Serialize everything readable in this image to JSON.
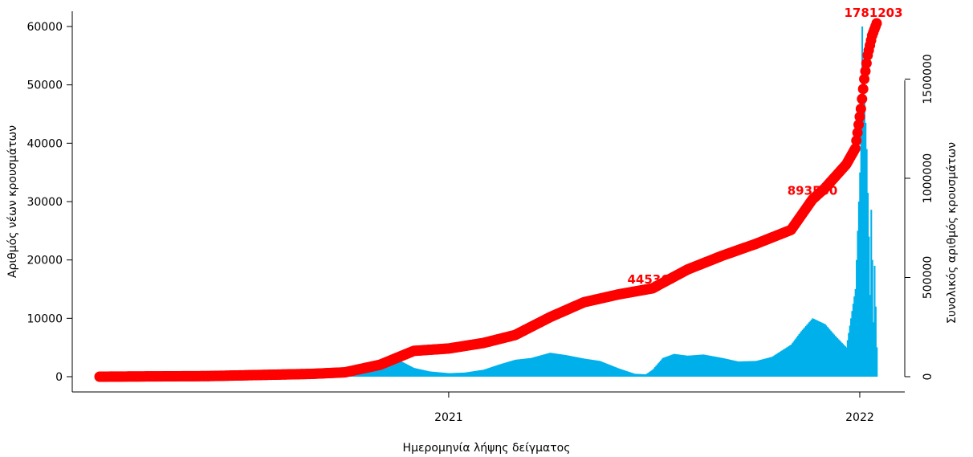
{
  "chart_data": {
    "type": "bar",
    "xlabel": "Ημερομηνία λήψης δείγματος",
    "ylabel_left": "Αριθμός νέων κρουσμάτων",
    "ylabel_right": "Συνολικός αριθμός κρουσμάτων",
    "x_range": [
      "2020-02-26",
      "2022-01-16"
    ],
    "x_ticks": [
      {
        "date": "2021-01-01",
        "label": "2021"
      },
      {
        "date": "2022-01-01",
        "label": "2022"
      }
    ],
    "y_left_range": [
      0,
      60000
    ],
    "y_left_ticks": [
      0,
      10000,
      20000,
      30000,
      40000,
      50000,
      60000
    ],
    "y_right_range": [
      0,
      1781203
    ],
    "y_right_ticks": [
      0,
      500000,
      1000000,
      1500000
    ],
    "colors": {
      "bars": "#00B0EB",
      "cumulative": "#ff0000",
      "annotations": "#ff0000"
    },
    "series": [
      {
        "name": "Αριθμός νέων κρουσμάτων",
        "kind": "bar",
        "axis": "left",
        "points": [
          [
            "2020-02-26",
            0
          ],
          [
            "2020-04-01",
            60
          ],
          [
            "2020-05-01",
            20
          ],
          [
            "2020-06-01",
            15
          ],
          [
            "2020-07-01",
            40
          ],
          [
            "2020-08-01",
            180
          ],
          [
            "2020-09-01",
            250
          ],
          [
            "2020-10-01",
            700
          ],
          [
            "2020-10-15",
            1200
          ],
          [
            "2020-11-01",
            2500
          ],
          [
            "2020-11-10",
            3600
          ],
          [
            "2020-11-20",
            2600
          ],
          [
            "2020-12-01",
            1500
          ],
          [
            "2020-12-15",
            900
          ],
          [
            "2021-01-01",
            600
          ],
          [
            "2021-01-15",
            700
          ],
          [
            "2021-02-01",
            1200
          ],
          [
            "2021-02-15",
            2100
          ],
          [
            "2021-03-01",
            2900
          ],
          [
            "2021-03-15",
            3200
          ],
          [
            "2021-04-01",
            4100
          ],
          [
            "2021-04-15",
            3700
          ],
          [
            "2021-05-01",
            3100
          ],
          [
            "2021-05-15",
            2700
          ],
          [
            "2021-06-01",
            1400
          ],
          [
            "2021-06-15",
            500
          ],
          [
            "2021-06-25",
            400
          ],
          [
            "2021-07-01",
            1200
          ],
          [
            "2021-07-10",
            3200
          ],
          [
            "2021-07-20",
            3900
          ],
          [
            "2021-08-01",
            3600
          ],
          [
            "2021-08-15",
            3800
          ],
          [
            "2021-09-01",
            3200
          ],
          [
            "2021-09-15",
            2600
          ],
          [
            "2021-10-01",
            2700
          ],
          [
            "2021-10-15",
            3400
          ],
          [
            "2021-11-01",
            5500
          ],
          [
            "2021-11-10",
            7800
          ],
          [
            "2021-11-20",
            10000
          ],
          [
            "2021-12-01",
            9000
          ],
          [
            "2021-12-10",
            7000
          ],
          [
            "2021-12-20",
            5000
          ],
          [
            "2021-12-28",
            15000
          ],
          [
            "2022-01-01",
            35000
          ],
          [
            "2022-01-03",
            60000
          ],
          [
            "2022-01-05",
            48000
          ],
          [
            "2022-01-07",
            39000
          ],
          [
            "2022-01-09",
            24000
          ],
          [
            "2022-01-10",
            14000
          ],
          [
            "2022-01-11",
            28604
          ],
          [
            "2022-01-12",
            20000
          ],
          [
            "2022-01-13",
            9315
          ],
          [
            "2022-01-14",
            19000
          ],
          [
            "2022-01-16",
            5031
          ]
        ]
      },
      {
        "name": "Συνολικός αριθμός κρουσμάτων",
        "kind": "line",
        "axis": "right",
        "points": [
          [
            "2020-02-26",
            0
          ],
          [
            "2020-06-01",
            3000
          ],
          [
            "2020-09-01",
            14000
          ],
          [
            "2020-10-01",
            22000
          ],
          [
            "2020-11-01",
            60000
          ],
          [
            "2020-12-01",
            130000
          ],
          [
            "2021-01-01",
            142000
          ],
          [
            "2021-02-01",
            170000
          ],
          [
            "2021-03-01",
            210000
          ],
          [
            "2021-04-01",
            300000
          ],
          [
            "2021-05-01",
            375000
          ],
          [
            "2021-06-01",
            415000
          ],
          [
            "2021-07-01",
            445367
          ],
          [
            "2021-08-01",
            540000
          ],
          [
            "2021-09-01",
            610000
          ],
          [
            "2021-10-01",
            670000
          ],
          [
            "2021-11-01",
            740000
          ],
          [
            "2021-11-20",
            893550
          ],
          [
            "2021-12-01",
            950000
          ],
          [
            "2021-12-20",
            1070000
          ],
          [
            "2021-12-28",
            1150000
          ],
          [
            "2022-01-02",
            1350000
          ],
          [
            "2022-01-05",
            1500000
          ],
          [
            "2022-01-08",
            1620000
          ],
          [
            "2022-01-12",
            1720000
          ],
          [
            "2022-01-16",
            1781203
          ]
        ]
      }
    ],
    "annotations": [
      {
        "date": "2021-07-01",
        "value": 445367,
        "text": "445367"
      },
      {
        "date": "2021-11-20",
        "value": 893550,
        "text": "893550"
      },
      {
        "date": "2022-01-16",
        "value": 1781203,
        "text": "1781203"
      }
    ]
  }
}
